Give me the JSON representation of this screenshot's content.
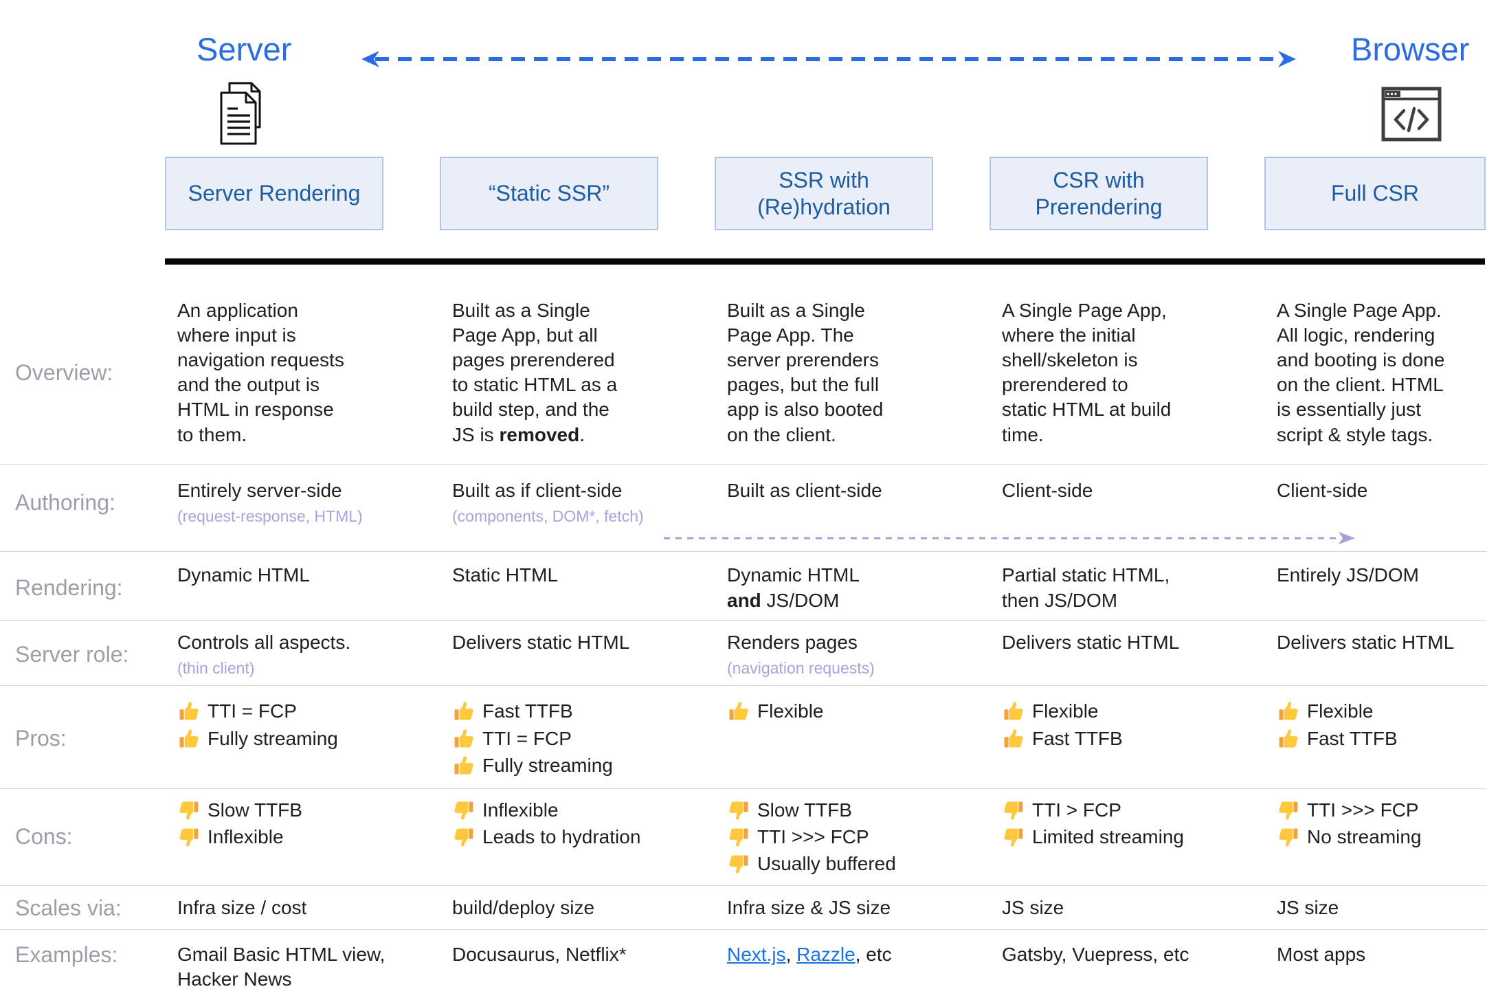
{
  "top": {
    "server_label": "Server",
    "browser_label": "Browser",
    "server_icon": "documents-icon",
    "browser_icon": "browser-code-icon",
    "axis_arrow": "dashed-double-arrow"
  },
  "colors": {
    "axis_blue": "#2b6ce2",
    "box_background": "#e9eef8",
    "box_border": "#aec6ea",
    "box_text": "#1d5c9e",
    "body_text": "#1f1f1f",
    "row_label_gray": "#9aa0a6",
    "note_purple": "#a9a2dc",
    "link_blue": "#1a73e8",
    "thumb_yellow": "#FFC83D",
    "thumb_sleeve": "#F2A33C"
  },
  "row_labels": {
    "overview": "Overview:",
    "authoring": "Authoring:",
    "rendering": "Rendering:",
    "server_role": "Server role:",
    "pros": "Pros:",
    "cons": "Cons:",
    "scales_via": "Scales via:",
    "examples": "Examples:"
  },
  "icons": {
    "pro": "thumbs-up-icon",
    "con": "thumbs-down-icon"
  },
  "columns": [
    {
      "title": "Server Rendering",
      "overview": "An application\nwhere input is\nnavigation requests\nand the output is\nHTML in response\nto them.",
      "authoring": "Entirely server-side",
      "authoring_note": "(request-response, HTML)",
      "rendering": "Dynamic HTML",
      "server_role": "Controls all aspects.",
      "server_role_note": "(thin client)",
      "pros": [
        "TTI = FCP",
        "Fully streaming"
      ],
      "cons": [
        "Slow TTFB",
        "Inflexible"
      ],
      "scales_via": "Infra size / cost",
      "examples": [
        {
          "text": "Gmail Basic HTML view,\nHacker News"
        }
      ]
    },
    {
      "title": "“Static SSR”",
      "overview": "Built as a Single\nPage App, but all\npages prerendered\nto static HTML as a\nbuild step, and the\nJS is **removed**.",
      "authoring": "Built as if client-side",
      "authoring_note": "(components, DOM*, fetch)",
      "rendering": "Static HTML",
      "server_role": "Delivers static HTML",
      "pros": [
        "Fast TTFB",
        "TTI = FCP",
        "Fully streaming"
      ],
      "cons": [
        "Inflexible",
        "Leads to hydration"
      ],
      "scales_via": "build/deploy size",
      "examples": [
        {
          "text": "Docusaurus, Netflix*"
        }
      ]
    },
    {
      "title": "SSR with\n(Re)hydration",
      "overview": "Built as a Single\nPage App. The\nserver prerenders\npages, but the full\napp is also booted\non the client.",
      "authoring": "Built as client-side",
      "rendering": "Dynamic HTML\n**and** JS/DOM",
      "server_role": "Renders pages",
      "server_role_note": "(navigation requests)",
      "pros": [
        "Flexible"
      ],
      "cons": [
        "Slow TTFB",
        "TTI >>> FCP",
        "Usually buffered"
      ],
      "scales_via": "Infra size & JS size",
      "examples": [
        {
          "text": "Next.js",
          "link": true
        },
        {
          "text": ", "
        },
        {
          "text": "Razzle",
          "link": true
        },
        {
          "text": ", etc"
        }
      ]
    },
    {
      "title": "CSR with\nPrerendering",
      "overview": "A Single Page App,\nwhere the initial\nshell/skeleton is\nprerendered to\nstatic HTML at build\ntime.",
      "authoring": "Client-side",
      "rendering": "Partial static HTML,\nthen JS/DOM",
      "server_role": "Delivers static HTML",
      "pros": [
        "Flexible",
        "Fast TTFB"
      ],
      "cons": [
        "TTI > FCP",
        "Limited streaming"
      ],
      "scales_via": "JS size",
      "examples": [
        {
          "text": "Gatsby, Vuepress, etc"
        }
      ]
    },
    {
      "title": "Full CSR",
      "overview": "A Single Page App.\nAll logic, rendering\nand booting is done\non the client. HTML\nis essentially just\nscript & style tags.",
      "authoring": "Client-side",
      "rendering": "Entirely JS/DOM",
      "server_role": "Delivers static HTML",
      "pros": [
        "Flexible",
        "Fast TTFB"
      ],
      "cons": [
        "TTI >>> FCP",
        "No streaming"
      ],
      "scales_via": "JS size",
      "examples": [
        {
          "text": "Most apps"
        }
      ]
    }
  ]
}
